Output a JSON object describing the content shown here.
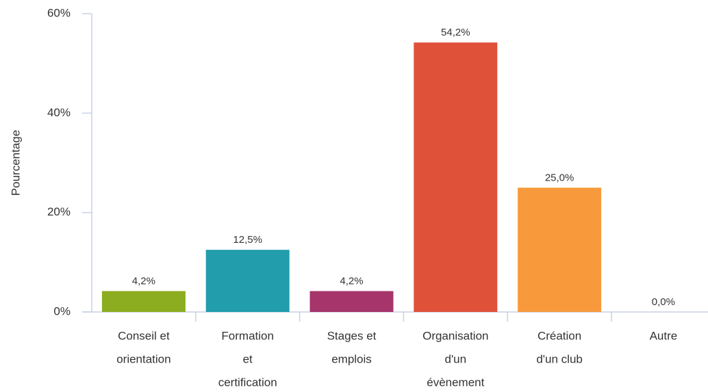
{
  "chart_data": {
    "type": "bar",
    "y_label": "Pourcentage",
    "categories": [
      [
        "Conseil et",
        "orientation"
      ],
      [
        "Formation",
        "et",
        "certification"
      ],
      [
        "Stages et",
        "emplois"
      ],
      [
        "Organisation",
        "d'un",
        "évènement"
      ],
      [
        "Création",
        "d'un club"
      ],
      [
        "Autre"
      ]
    ],
    "values": [
      4.2,
      12.5,
      4.2,
      54.2,
      25.0,
      0.0
    ],
    "value_labels": [
      "4,2%",
      "12,5%",
      "4,2%",
      "54,2%",
      "25,0%",
      "0,0%"
    ],
    "colors": [
      "#8cad1f",
      "#219dac",
      "#a5356a",
      "#e0513a",
      "#f89a3c",
      "#7f7f7f"
    ],
    "ylim": [
      0,
      60
    ],
    "yticks": [
      {
        "value": 0,
        "label": "0%"
      },
      {
        "value": 20,
        "label": "20%"
      },
      {
        "value": 40,
        "label": "40%"
      },
      {
        "value": 60,
        "label": "60%"
      }
    ]
  }
}
